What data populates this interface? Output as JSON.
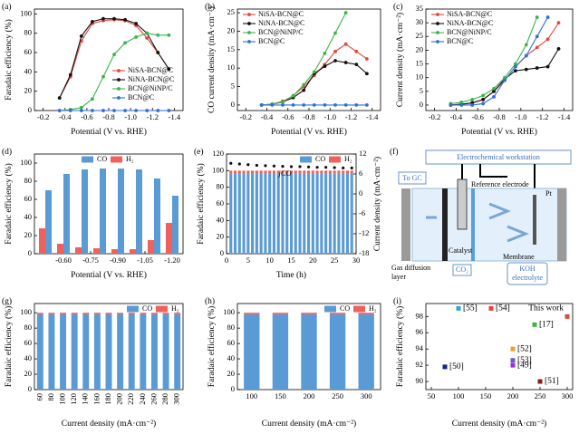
{
  "chart_data": [
    {
      "type": "line",
      "label": "(a)",
      "xlabel": "Potential (V vs. RHE)",
      "ylabel": "Faradaic efficiency (%)",
      "xlim": [
        -0.12,
        -1.48
      ],
      "xticks": [
        -0.2,
        -0.4,
        -0.6,
        -0.8,
        {
          "value": -1,
          "label": "-1.0"
        },
        -1.2,
        -1.4
      ],
      "ylim": [
        0,
        105
      ],
      "yticks": [
        0,
        20,
        40,
        60,
        80,
        100
      ],
      "legend": "lower right",
      "series": [
        {
          "name": "NiSA-BCN@C",
          "color": "#e8443a",
          "x": [
            -0.35,
            -0.45,
            -0.55,
            -0.65,
            -0.75,
            -0.85,
            -0.95,
            -1.05,
            -1.15,
            -1.25,
            -1.35
          ],
          "values": [
            13,
            35,
            72,
            90,
            93,
            94,
            93,
            88,
            75,
            60,
            43
          ]
        },
        {
          "name": "NiNA-BCN@C",
          "color": "#111111",
          "x": [
            -0.35,
            -0.45,
            -0.55,
            -0.65,
            -0.75,
            -0.85,
            -0.95,
            -1.05,
            -1.15,
            -1.25,
            -1.35
          ],
          "values": [
            13,
            37,
            77,
            92,
            95,
            95,
            94,
            90,
            80,
            60,
            43
          ]
        },
        {
          "name": "BCN@NiNP/C",
          "color": "#3cb44b",
          "x": [
            -0.35,
            -0.45,
            -0.55,
            -0.65,
            -0.75,
            -0.85,
            -0.95,
            -1.05,
            -1.15,
            -1.25,
            -1.35
          ],
          "values": [
            0,
            1,
            3,
            12,
            35,
            58,
            70,
            76,
            80,
            78,
            78
          ]
        },
        {
          "name": "BCN@C",
          "color": "#2f6fd6",
          "x": [
            -0.35,
            -0.45,
            -0.55,
            -0.65,
            -0.75,
            -0.85,
            -0.95,
            -1.05,
            -1.15,
            -1.25,
            -1.35
          ],
          "values": [
            0,
            0,
            0,
            0,
            0,
            0,
            0,
            0,
            0,
            0,
            0
          ]
        }
      ]
    },
    {
      "type": "line",
      "label": "(b)",
      "xlabel": "Potential (V vs. RHE)",
      "ylabel": "CO current density (mA·cm⁻²)",
      "xlim": [
        -0.12,
        -1.48
      ],
      "xticks": [
        -0.2,
        -0.4,
        -0.6,
        -0.8,
        {
          "value": -1,
          "label": "-1.0"
        },
        -1.2,
        -1.4
      ],
      "ylim": [
        -1.5,
        26
      ],
      "yticks": [
        0,
        5,
        10,
        15,
        20,
        25
      ],
      "legend": "upper left",
      "series": [
        {
          "name": "NiSA-BCN@C",
          "color": "#e8443a",
          "x": [
            -0.35,
            -0.45,
            -0.55,
            -0.65,
            -0.75,
            -0.85,
            -0.95,
            -1.05,
            -1.15,
            -1.25,
            -1.35
          ],
          "values": [
            0,
            0.2,
            1,
            2.5,
            5,
            8,
            11,
            14.5,
            16.5,
            14.5,
            12.5
          ]
        },
        {
          "name": "NiNA-BCN@C",
          "color": "#111111",
          "x": [
            -0.35,
            -0.45,
            -0.55,
            -0.65,
            -0.75,
            -0.85,
            -0.95,
            -1.05,
            -1.15,
            -1.25,
            -1.35
          ],
          "values": [
            0,
            0.2,
            0.8,
            2,
            4,
            8.5,
            10.5,
            12,
            11.5,
            11,
            8.5
          ]
        },
        {
          "name": "BCN@NiNP/C",
          "color": "#3cb44b",
          "x": [
            -0.35,
            -0.45,
            -0.55,
            -0.65,
            -0.75,
            -0.85,
            -0.95,
            -1.05,
            -1.15
          ],
          "values": [
            0,
            0.2,
            0.8,
            2.5,
            5.5,
            9,
            14,
            19.5,
            25
          ]
        },
        {
          "name": "BCN@C",
          "color": "#2f6fd6",
          "x": [
            -0.35,
            -0.45,
            -0.55,
            -0.65,
            -0.75,
            -0.85,
            -0.95,
            -1.05,
            -1.15,
            -1.25,
            -1.35
          ],
          "values": [
            0,
            0,
            0,
            0,
            0,
            0,
            0,
            0,
            0,
            0,
            0
          ]
        }
      ]
    },
    {
      "type": "line",
      "label": "(c)",
      "xlabel": "Potential (V vs. RHE)",
      "ylabel": "Current density (mA·cm⁻²)",
      "xlim": [
        -0.12,
        -1.48
      ],
      "xticks": [
        -0.2,
        -0.4,
        -0.6,
        -0.8,
        {
          "value": -1,
          "label": "-1.0"
        },
        -1.2,
        -1.4
      ],
      "ylim": [
        -2,
        35
      ],
      "yticks": [
        0,
        5,
        10,
        15,
        20,
        25,
        30,
        35
      ],
      "legend": "upper left",
      "series": [
        {
          "name": "NiSA-BCN@C",
          "color": "#e8443a",
          "x": [
            -0.35,
            -0.45,
            -0.55,
            -0.65,
            -0.75,
            -0.85,
            -0.95,
            -1.05,
            -1.15,
            -1.25,
            -1.35
          ],
          "values": [
            0,
            0.3,
            0.8,
            2,
            5,
            9,
            14,
            18,
            21,
            24,
            30
          ]
        },
        {
          "name": "NiNA-BCN@C",
          "color": "#111111",
          "x": [
            -0.35,
            -0.45,
            -0.55,
            -0.65,
            -0.75,
            -0.85,
            -0.95,
            -1.05,
            -1.15,
            -1.25,
            -1.35
          ],
          "values": [
            0,
            0.3,
            0.8,
            2,
            5,
            9.5,
            12.5,
            13,
            13.5,
            14,
            20.5
          ]
        },
        {
          "name": "BCN@NiNP/C",
          "color": "#3cb44b",
          "x": [
            -0.35,
            -0.45,
            -0.55,
            -0.65,
            -0.75,
            -0.85,
            -0.95,
            -1.05,
            -1.15
          ],
          "values": [
            0.5,
            1,
            2,
            3.5,
            6,
            10,
            15,
            22,
            32
          ]
        },
        {
          "name": "BCN@C",
          "color": "#2f6fd6",
          "x": [
            -0.35,
            -0.45,
            -0.55,
            -0.65,
            -0.75,
            -0.85,
            -0.95,
            -1.05,
            -1.15,
            -1.25
          ],
          "values": [
            0,
            0,
            0,
            0.5,
            3,
            9,
            14,
            18,
            25,
            32
          ]
        }
      ]
    },
    {
      "type": "bar",
      "label": "(d)",
      "xlabel": "Potential (V vs. RHE)",
      "ylabel": "Faradaic efficiency (%)",
      "x": [
        -0.5,
        -0.6,
        -0.7,
        -0.8,
        -0.9,
        -1.0,
        -1.1,
        -1.2
      ],
      "xlim": [
        -0.44,
        -1.26
      ],
      "xticks": [
        {
          "value": -0.6,
          "label": "-0.60"
        },
        -0.75,
        {
          "value": -0.9,
          "label": "-0.90"
        },
        -1.05,
        {
          "value": -1.2,
          "label": "-1.20"
        }
      ],
      "ylim": [
        0,
        110
      ],
      "yticks": [
        0,
        20,
        40,
        60,
        80,
        100
      ],
      "legend": "upper center",
      "series": [
        {
          "name": "CO",
          "color": "#5b9bd5",
          "values": [
            70,
            88,
            93,
            94,
            94,
            93,
            83,
            64
          ]
        },
        {
          "name": "H₂",
          "color": "#f0605d",
          "values": [
            28,
            11,
            7,
            6,
            5,
            5,
            15,
            34
          ]
        }
      ]
    },
    {
      "type": "stacked_bar",
      "label": "(e)",
      "xlabel": "Time (h)",
      "ylabel": "Faradaic efficiency (%)",
      "y2label": "Current density (mA·cm⁻²)",
      "x": [
        1,
        2,
        3,
        4,
        5,
        6,
        7,
        8,
        9,
        10,
        11,
        12,
        13,
        14,
        15,
        16,
        17,
        18,
        19,
        20,
        21,
        22,
        23,
        24,
        25,
        26,
        27,
        28,
        29
      ],
      "xlim": [
        0,
        30
      ],
      "xticks": [
        0,
        5,
        10,
        15,
        20,
        25,
        30
      ],
      "ylim": [
        0,
        120
      ],
      "yticks": [
        0,
        20,
        40,
        60,
        80,
        100,
        120
      ],
      "y2lim": [
        -18,
        12
      ],
      "y2ticks": [
        12,
        6,
        0,
        -6,
        -12,
        -18
      ],
      "legend": "upper right",
      "series": [
        {
          "name": "CO",
          "color": "#5b9bd5",
          "values": [
            97,
            97,
            97,
            97,
            97,
            97,
            97,
            97,
            97,
            97,
            97,
            97,
            97,
            97,
            97,
            97,
            97,
            97,
            97,
            97,
            97,
            97,
            97,
            97,
            97,
            97,
            97,
            97,
            97
          ]
        },
        {
          "name": "H₂",
          "color": "#f0605d",
          "values": [
            3,
            3,
            3,
            3,
            3,
            3,
            3,
            3,
            3,
            3,
            3,
            3,
            3,
            3,
            3,
            3,
            3,
            3,
            3,
            3,
            3,
            3,
            3,
            3,
            3,
            3,
            3,
            3,
            3
          ]
        },
        {
          "name": "jCO",
          "color": "#111111",
          "axis": "y2",
          "x": [
            1,
            3,
            5,
            7,
            9,
            11,
            13,
            15,
            17,
            19,
            21,
            23,
            25,
            27,
            29
          ],
          "values": [
            9.2,
            9,
            8.8,
            8.6,
            8.5,
            8.4,
            8.3,
            8.2,
            8.2,
            8.1,
            8,
            8,
            7.9,
            7.8,
            7.8
          ]
        }
      ]
    },
    {
      "type": "stacked_bar",
      "label": "(g)",
      "xlabel": "Current density (mA·cm⁻²)",
      "ylabel": "Faradaic efficiency (%)",
      "categories": [
        "60",
        "80",
        "100",
        "120",
        "140",
        "160",
        "180",
        "200",
        "220",
        "240",
        "260",
        "280",
        "300"
      ],
      "ylim": [
        0,
        112
      ],
      "yticks": [
        0,
        20,
        40,
        60,
        80,
        100
      ],
      "legend": "upper right",
      "series": [
        {
          "name": "CO",
          "color": "#5b9bd5",
          "values": [
            98,
            98,
            98,
            98,
            98,
            98,
            98,
            98,
            98,
            98,
            98,
            98,
            98
          ]
        },
        {
          "name": "H₂",
          "color": "#f0605d",
          "values": [
            2,
            2,
            2,
            2,
            2,
            2,
            2,
            2,
            2,
            2,
            2,
            2,
            2
          ]
        }
      ]
    },
    {
      "type": "stacked_bar",
      "label": "(h)",
      "xlabel": "Current density (mA·cm⁻²)",
      "ylabel": "Faradaic efficiency (%)",
      "categories": [
        "100",
        "150",
        "200",
        "250",
        "300"
      ],
      "ylim": [
        0,
        112
      ],
      "yticks": [
        0,
        20,
        40,
        60,
        80,
        100
      ],
      "legend": "upper right",
      "series": [
        {
          "name": "CO",
          "color": "#5b9bd5",
          "values": [
            98,
            98,
            98,
            98,
            98
          ]
        },
        {
          "name": "H₂",
          "color": "#f0605d",
          "values": [
            2,
            2,
            2,
            2,
            2
          ]
        }
      ]
    },
    {
      "type": "scatter",
      "label": "(i)",
      "xlabel": "Current density (mA·cm⁻²)",
      "ylabel": "Faradaic efficiency (%)",
      "xlim": [
        40,
        310
      ],
      "xticks": [
        50,
        100,
        150,
        200,
        250,
        300
      ],
      "ylim": [
        89,
        99.6
      ],
      "yticks": [
        90,
        92,
        94,
        96,
        98
      ],
      "series": [
        {
          "name": "[55]",
          "color": "#3aa0d8",
          "x": [
            100
          ],
          "values": [
            99
          ]
        },
        {
          "name": "[54]",
          "color": "#e8443a",
          "x": [
            160
          ],
          "values": [
            99
          ]
        },
        {
          "name": "This work",
          "color": "#e8443a",
          "x": [
            300
          ],
          "values": [
            98
          ]
        },
        {
          "name": "[17]",
          "color": "#3cb44b",
          "x": [
            240
          ],
          "values": [
            97
          ]
        },
        {
          "name": "[52]",
          "color": "#f0a030",
          "x": [
            200
          ],
          "values": [
            94
          ]
        },
        {
          "name": "[53]",
          "color": "#6a5acd",
          "x": [
            200
          ],
          "values": [
            92.6
          ]
        },
        {
          "name": "[49]",
          "color": "#9b30d0",
          "x": [
            200
          ],
          "values": [
            92
          ]
        },
        {
          "name": "[50]",
          "color": "#1a237e",
          "x": [
            75
          ],
          "values": [
            91.8
          ]
        },
        {
          "name": "[51]",
          "color": "#8b1a1a",
          "x": [
            250
          ],
          "values": [
            90
          ]
        }
      ]
    }
  ],
  "diagram": {
    "label": "(f)",
    "workstation": "Electrochemical workstation",
    "to_gc": "To GC",
    "reference_electrode": "Reference electrode",
    "pt": "Pt",
    "catalyst": "Catalyst",
    "membrane": "Membrane",
    "gas_diffusion_layer": [
      "Gas diffusion",
      "layer"
    ],
    "co2": "CO₂",
    "koh": [
      "KOH",
      "electrolyte"
    ]
  }
}
